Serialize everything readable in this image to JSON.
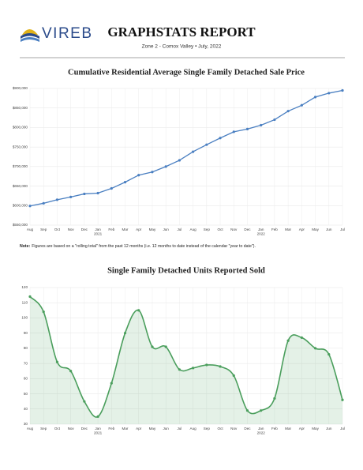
{
  "header": {
    "logo": "VIREB",
    "title": "GRAPHSTATS REPORT",
    "subtitle": "Zone 2 - Comox Valley • July, 2022"
  },
  "note": {
    "label": "Note:",
    "text": "Figures are based on a \"rolling total\" from the past 12 months (i.e. 12 months to date instead of the calendar \"year to date\")."
  },
  "chart_data": [
    {
      "type": "line",
      "title": "Cumulative Residential Average Single Family Detached Sale Price",
      "color": "#4a7fc1",
      "grid": true,
      "categories": [
        "Aug",
        "Sep",
        "Oct",
        "Nov",
        "Dec",
        "Jan",
        "Feb",
        "Mar",
        "Apr",
        "May",
        "Jun",
        "Jul",
        "Aug",
        "Sep",
        "Oct",
        "Nov",
        "Dec",
        "Jan",
        "Feb",
        "Mar",
        "Apr",
        "May",
        "Jun",
        "Jul"
      ],
      "years": [
        "2021",
        "2022"
      ],
      "values": [
        599000,
        606000,
        615000,
        622000,
        630000,
        632000,
        644000,
        660000,
        678000,
        686000,
        700000,
        716000,
        738000,
        756000,
        773000,
        789000,
        796000,
        806000,
        820000,
        842000,
        857000,
        878000,
        888000,
        895000
      ],
      "ylim": [
        550000,
        900000
      ],
      "yticks": [
        {
          "value": 550000,
          "label": "$550,000"
        },
        {
          "value": 600000,
          "label": "$600,000"
        },
        {
          "value": 650000,
          "label": "$650,000"
        },
        {
          "value": 700000,
          "label": "$700,000"
        },
        {
          "value": 750000,
          "label": "$750,000"
        },
        {
          "value": 800000,
          "label": "$800,000"
        },
        {
          "value": 850000,
          "label": "$850,000"
        },
        {
          "value": 900000,
          "label": "$900,000"
        }
      ]
    },
    {
      "type": "area",
      "title": "Single Family Detached Units Reported Sold",
      "color": "#4a9e5c",
      "grid": true,
      "categories": [
        "Aug",
        "Sep",
        "Oct",
        "Nov",
        "Dec",
        "Jan",
        "Feb",
        "Mar",
        "Apr",
        "May",
        "Jun",
        "Jul",
        "Aug",
        "Sep",
        "Oct",
        "Nov",
        "Dec",
        "Jan",
        "Feb",
        "Mar",
        "Apr",
        "May",
        "Jun",
        "Jul"
      ],
      "years": [
        "2021",
        "2022"
      ],
      "values": [
        114,
        104,
        71,
        65,
        45,
        35,
        57,
        90,
        105,
        81,
        81,
        66,
        67,
        69,
        68,
        62,
        39,
        39,
        47,
        85,
        87,
        80,
        76,
        46
      ],
      "ylim": [
        30,
        120
      ],
      "yticks": [
        30,
        40,
        50,
        60,
        70,
        80,
        90,
        100,
        110,
        120
      ]
    }
  ]
}
